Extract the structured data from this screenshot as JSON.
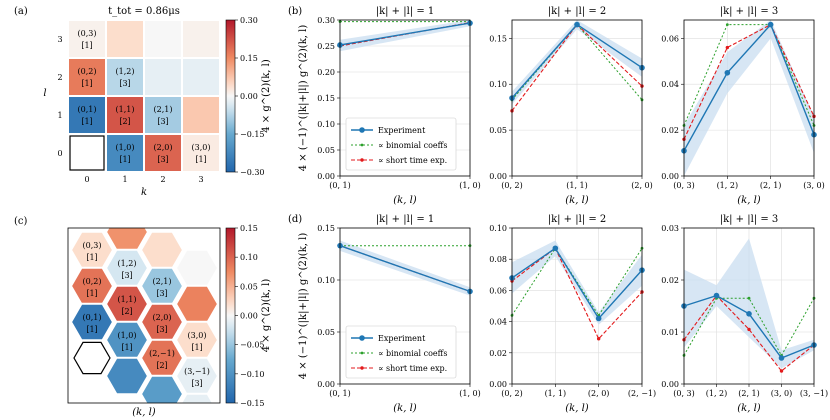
{
  "colors": {
    "experiment": "#1f77b4",
    "band": "#c6dbef",
    "binomial": "#2ca02c",
    "short_time": "#e31a1c",
    "grid": "#dddddd"
  },
  "chart_data": [
    {
      "id": "a",
      "panel_label": "(a)",
      "type": "heatmap",
      "title": "t_tot = 0.86μs",
      "xlabel": "k",
      "ylabel": "l",
      "x_ticks": [
        "0",
        "1",
        "2",
        "3"
      ],
      "y_ticks": [
        "0",
        "1",
        "2",
        "3"
      ],
      "colorbar": {
        "label": "4 × g^(2)(k, l)",
        "range": [
          -0.3,
          0.3
        ],
        "ticks": [
          "0.30",
          "0.15",
          "0.00",
          "−0.15",
          "−0.30"
        ]
      },
      "cells": [
        {
          "k": 0,
          "l": 0,
          "value": null,
          "outlined": true
        },
        {
          "k": 1,
          "l": 0,
          "value": -0.22,
          "label": "(1,0)",
          "mult": "[1]"
        },
        {
          "k": 2,
          "l": 0,
          "value": 0.2,
          "label": "(2,0)",
          "mult": "[3]"
        },
        {
          "k": 3,
          "l": 0,
          "value": 0.02,
          "label": "(3,0)",
          "mult": "[1]"
        },
        {
          "k": 0,
          "l": 1,
          "value": -0.26,
          "label": "(0,1)",
          "mult": "[1]"
        },
        {
          "k": 1,
          "l": 1,
          "value": 0.22,
          "label": "(1,1)",
          "mult": "[2]"
        },
        {
          "k": 2,
          "l": 1,
          "value": -0.09,
          "label": "(2,1)",
          "mult": "[3]"
        },
        {
          "k": 3,
          "l": 1,
          "value": 0.07
        },
        {
          "k": 0,
          "l": 2,
          "value": 0.17,
          "label": "(0,2)",
          "mult": "[1]"
        },
        {
          "k": 1,
          "l": 2,
          "value": -0.07,
          "label": "(1,2)",
          "mult": "[3]"
        },
        {
          "k": 2,
          "l": 2,
          "value": -0.02
        },
        {
          "k": 3,
          "l": 2,
          "value": -0.02
        },
        {
          "k": 0,
          "l": 3,
          "value": 0.01,
          "label": "(0,3)",
          "mult": "[1]"
        },
        {
          "k": 1,
          "l": 3,
          "value": 0.04
        },
        {
          "k": 2,
          "l": 3,
          "value": 0.0
        },
        {
          "k": 3,
          "l": 3,
          "value": 0.01
        }
      ]
    },
    {
      "id": "c",
      "panel_label": "(c)",
      "type": "heatmap",
      "xlabel": "(k, l)",
      "colorbar": {
        "label": "4 × g^(2)(k, l)",
        "range": [
          -0.15,
          0.15
        ],
        "ticks": [
          "0.15",
          "0.10",
          "0.05",
          "0.00",
          "−0.05",
          "−0.10",
          "−0.15"
        ]
      },
      "hexes": [
        {
          "c": 0,
          "r": 0,
          "value": 0.02,
          "label": "(0,3)",
          "mult": "[1]"
        },
        {
          "c": 0,
          "r": 1,
          "value": 0.09,
          "label": "(0,2)",
          "mult": "[1]"
        },
        {
          "c": 0,
          "r": 2,
          "value": -0.13,
          "label": "(0,1)",
          "mult": "[1]"
        },
        {
          "c": 0,
          "r": 3,
          "value": null,
          "outlined": true
        },
        {
          "c": 1,
          "r": -1,
          "value": 0.07
        },
        {
          "c": 1,
          "r": 0,
          "value": -0.02,
          "label": "(1,2)",
          "mult": "[3]"
        },
        {
          "c": 1,
          "r": 1,
          "value": 0.11,
          "label": "(1,1)",
          "mult": "[2]"
        },
        {
          "c": 1,
          "r": 2,
          "value": -0.1,
          "label": "(1,0)",
          "mult": "[1]"
        },
        {
          "c": 1,
          "r": 3,
          "value": -0.11
        },
        {
          "c": 2,
          "r": -1,
          "value": 0.02
        },
        {
          "c": 2,
          "r": 0,
          "value": -0.05,
          "label": "(2,1)",
          "mult": "[3]"
        },
        {
          "c": 2,
          "r": 1,
          "value": 0.1,
          "label": "(2,0)",
          "mult": "[3]"
        },
        {
          "c": 2,
          "r": 2,
          "value": 0.09,
          "label": "(2,−1)",
          "mult": "[2]"
        },
        {
          "c": 2,
          "r": 3,
          "value": -0.09
        },
        {
          "c": 3,
          "r": -1,
          "value": 0.0
        },
        {
          "c": 3,
          "r": 0,
          "value": 0.08
        },
        {
          "c": 3,
          "r": 1,
          "value": 0.02,
          "label": "(3,0)",
          "mult": "[1]"
        },
        {
          "c": 3,
          "r": 2,
          "value": -0.01,
          "label": "(3,−1)",
          "mult": "[3]"
        },
        {
          "c": 3,
          "r": 3,
          "value": -0.01
        }
      ]
    },
    {
      "id": "b1",
      "panel_label": "(b)",
      "type": "line",
      "title": "|k| + |l| = 1",
      "ylabel": "4 × (−1)^(|k|+|l|) g^(2)(k, l)",
      "xlabel": "(k, l)",
      "categories": [
        "(0, 1)",
        "(1, 0)"
      ],
      "ylim": [
        0,
        0.3
      ],
      "yticks": [
        "0.00",
        "0.05",
        "0.10",
        "0.15",
        "0.20",
        "0.25",
        "0.30"
      ],
      "series": [
        {
          "name": "Experiment",
          "values": [
            0.252,
            0.294
          ]
        },
        {
          "name": "∝ binomial coeffs",
          "values": [
            0.297,
            0.297
          ]
        },
        {
          "name": "∝ short time exp.",
          "values": [
            0.25,
            0.295
          ]
        }
      ],
      "band": {
        "lower": [
          0.24,
          0.288
        ],
        "upper": [
          0.262,
          0.3
        ]
      },
      "legend": "lower-left"
    },
    {
      "id": "b2",
      "type": "line",
      "title": "|k| + |l| = 2",
      "xlabel": "(k, l)",
      "categories": [
        "(0, 2)",
        "(1, 1)",
        "(2, 0)"
      ],
      "ylim": [
        0,
        0.17
      ],
      "yticks": [
        "0.00",
        "0.05",
        "0.10",
        "0.15"
      ],
      "series": [
        {
          "name": "Experiment",
          "values": [
            0.085,
            0.165,
            0.118
          ]
        },
        {
          "name": "∝ binomial coeffs",
          "values": [
            0.083,
            0.165,
            0.083
          ]
        },
        {
          "name": "∝ short time exp.",
          "values": [
            0.071,
            0.165,
            0.098
          ]
        }
      ],
      "band": {
        "lower": [
          0.078,
          0.16,
          0.108
        ],
        "upper": [
          0.092,
          0.17,
          0.128
        ]
      }
    },
    {
      "id": "b3",
      "type": "line",
      "title": "|k| + |l| = 3",
      "xlabel": "(k, l)",
      "categories": [
        "(0, 3)",
        "(1, 2)",
        "(2, 1)",
        "(3, 0)"
      ],
      "ylim": [
        0,
        0.068
      ],
      "yticks": [
        "0.00",
        "0.02",
        "0.04",
        "0.06"
      ],
      "series": [
        {
          "name": "Experiment",
          "values": [
            0.011,
            0.045,
            0.066,
            0.018
          ]
        },
        {
          "name": "∝ binomial coeffs",
          "values": [
            0.022,
            0.066,
            0.066,
            0.022
          ]
        },
        {
          "name": "∝ short time exp.",
          "values": [
            0.016,
            0.056,
            0.066,
            0.026
          ]
        }
      ],
      "band": {
        "lower": [
          0.0,
          0.036,
          0.06,
          0.01
        ],
        "upper": [
          0.022,
          0.054,
          0.068,
          0.026
        ]
      }
    },
    {
      "id": "d1",
      "panel_label": "(d)",
      "type": "line",
      "title": "|k| + |l| = 1",
      "ylabel": "4 × (−1)^(|k|+|l|) g^(2)(k, l)",
      "xlabel": "(k, l)",
      "categories": [
        "(0, 1)",
        "(1, 0)"
      ],
      "ylim": [
        0,
        0.15
      ],
      "yticks": [
        "0.00",
        "0.05",
        "0.10",
        "0.15"
      ],
      "series": [
        {
          "name": "Experiment",
          "values": [
            0.133,
            0.089
          ]
        },
        {
          "name": "∝ binomial coeffs",
          "values": [
            0.133,
            0.133
          ]
        },
        {
          "name": "∝ short time exp.",
          "values": [
            0.133,
            0.089
          ]
        }
      ],
      "band": {
        "lower": [
          0.128,
          0.085
        ],
        "upper": [
          0.138,
          0.093
        ]
      },
      "legend": "lower-left"
    },
    {
      "id": "d2",
      "type": "line",
      "title": "|k| + |l| = 2",
      "xlabel": "(k, l)",
      "categories": [
        "(0, 2)",
        "(1, 1)",
        "(2, 0)",
        "(2, −1)"
      ],
      "ylim": [
        0,
        0.1
      ],
      "yticks": [
        "0.00",
        "0.02",
        "0.04",
        "0.06",
        "0.08",
        "0.10"
      ],
      "series": [
        {
          "name": "Experiment",
          "values": [
            0.068,
            0.087,
            0.042,
            0.073
          ]
        },
        {
          "name": "∝ binomial coeffs",
          "values": [
            0.044,
            0.087,
            0.044,
            0.087
          ]
        },
        {
          "name": "∝ short time exp.",
          "values": [
            0.066,
            0.087,
            0.029,
            0.059
          ]
        }
      ],
      "band": {
        "lower": [
          0.058,
          0.082,
          0.038,
          0.063
        ],
        "upper": [
          0.078,
          0.092,
          0.046,
          0.083
        ]
      }
    },
    {
      "id": "d3",
      "type": "line",
      "title": "|k| + |l| = 3",
      "xlabel": "(k, l)",
      "categories": [
        "(0, 3)",
        "(1, 2)",
        "(2, 1)",
        "(3, 0)",
        "(3, −1)"
      ],
      "ylim": [
        0,
        0.03
      ],
      "yticks": [
        "0.00",
        "0.01",
        "0.02",
        "0.03"
      ],
      "series": [
        {
          "name": "Experiment",
          "values": [
            0.015,
            0.017,
            0.0135,
            0.005,
            0.0075
          ]
        },
        {
          "name": "∝ binomial coeffs",
          "values": [
            0.0055,
            0.0165,
            0.0165,
            0.0055,
            0.0165
          ]
        },
        {
          "name": "∝ short time exp.",
          "values": [
            0.0085,
            0.017,
            0.0105,
            0.0025,
            0.0075
          ]
        }
      ],
      "band": {
        "lower": [
          0.007,
          0.015,
          0.009,
          0.003,
          0.0065
        ],
        "upper": [
          0.022,
          0.019,
          0.028,
          0.0065,
          0.0085
        ]
      }
    }
  ]
}
